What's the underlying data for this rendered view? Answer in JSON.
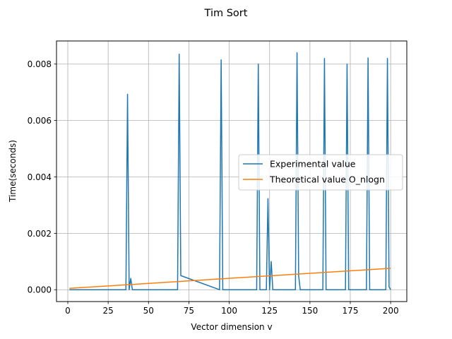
{
  "chart_data": {
    "type": "line",
    "title": "Tim Sort",
    "xlabel": "Vector dimension v",
    "ylabel": "Time(seconds)",
    "xlim": [
      -7,
      210
    ],
    "ylim": [
      -0.00042,
      0.00882
    ],
    "xticks": [
      0,
      25,
      50,
      75,
      100,
      125,
      150,
      175,
      200
    ],
    "xtick_labels": [
      "0",
      "25",
      "50",
      "75",
      "100",
      "125",
      "150",
      "175",
      "200"
    ],
    "yticks": [
      0.0,
      0.002,
      0.004,
      0.006,
      0.008
    ],
    "ytick_labels": [
      "0.000",
      "0.002",
      "0.004",
      "0.006",
      "0.008"
    ],
    "grid": true,
    "legend_position": "center-right",
    "series": [
      {
        "name": "Experimental value",
        "color": "#1f77b4",
        "x": [
          1,
          36,
          37,
          38,
          39,
          40,
          68,
          69,
          70,
          94,
          95,
          96,
          117,
          118,
          119,
          123,
          124,
          125,
          126,
          127,
          141,
          142,
          143,
          144,
          158,
          159,
          160,
          172,
          173,
          174,
          185,
          186,
          187,
          197,
          198,
          199,
          200
        ],
        "y": [
          0.0,
          0.0,
          0.00693,
          0.0,
          0.0004,
          0.0,
          0.0,
          0.00835,
          0.0005,
          0.0,
          0.00815,
          0.0,
          0.0,
          0.008,
          0.0,
          0.0,
          0.00323,
          0.0,
          0.001,
          0.0,
          0.0,
          0.0084,
          0.0005,
          0.0,
          0.0,
          0.0082,
          0.0,
          0.0,
          0.008,
          0.0,
          0.0,
          0.00822,
          0.0,
          0.0,
          0.0082,
          0.0001,
          0.0
        ]
      },
      {
        "name": "Theoretical value O_nlogn",
        "color": "#ff7f0e",
        "x": [
          1,
          200
        ],
        "y": [
          5e-05,
          0.00076
        ]
      }
    ]
  }
}
